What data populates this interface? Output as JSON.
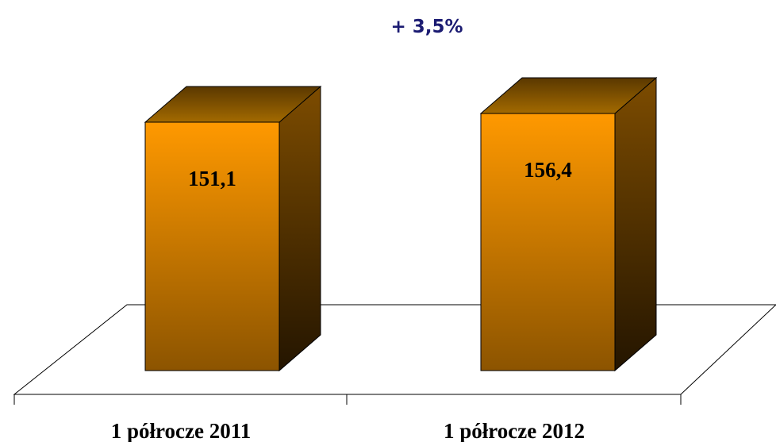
{
  "chart_data": {
    "type": "bar3d",
    "annotation": "+ 3,5%",
    "categories": [
      "1 półrocze 2011",
      "1 półrocze 2012"
    ],
    "values": [
      151.1,
      156.4
    ],
    "value_labels": [
      "151,1",
      "156,4"
    ],
    "color": "#ff9900"
  }
}
